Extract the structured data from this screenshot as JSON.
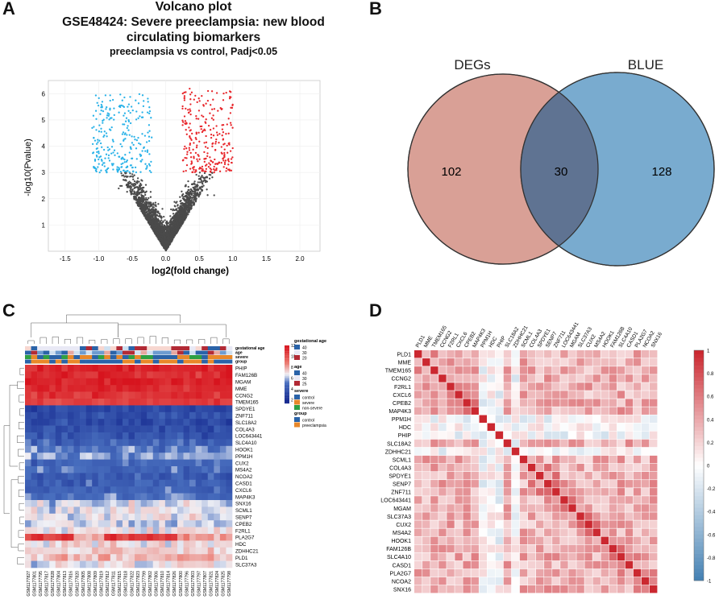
{
  "panels": {
    "a": "A",
    "b": "B",
    "c": "C",
    "d": "D"
  },
  "volcano": {
    "title": "Volcano plot",
    "subtitle": "GSE48424: Severe preeclampsia: new blood circulating biomarkers",
    "subtitle_line1": "GSE48424: Severe preeclampsia: new blood",
    "subtitle_line2": "circulating biomarkers",
    "comparison": "preeclampsia vs control, Padj<0.05",
    "chart_data": {
      "type": "scatter",
      "xlabel": "log2(fold change)",
      "ylabel": "-log10(Pvalue)",
      "xlim": [
        -1.75,
        2.3
      ],
      "ylim": [
        0,
        6.5
      ],
      "xticks": [
        "-1.5",
        "-1.0",
        "-0.5",
        "0.0",
        "0.5",
        "1.0",
        "1.5",
        "2.0"
      ],
      "xtick_values": [
        -1.5,
        -1.0,
        -0.5,
        0.0,
        0.5,
        1.0,
        1.5,
        2.0
      ],
      "yticks": [
        "1",
        "2",
        "3",
        "4",
        "5",
        "6"
      ],
      "ytick_values": [
        1,
        2,
        3,
        4,
        5,
        6
      ],
      "threshold_y": 3.0,
      "colors": {
        "down": "#29b2e8",
        "up": "#e8252a",
        "ns": "#4a4a4a"
      }
    }
  },
  "venn": {
    "chart_data": {
      "type": "venn",
      "sets": [
        {
          "name": "DEGs",
          "only": 102,
          "color": "#d9a096"
        },
        {
          "name": "BLUE",
          "only": 128,
          "color": "#79abcf"
        }
      ],
      "intersection": 30,
      "overlap_color": "#5f7392"
    }
  },
  "heatmap": {
    "chart_data": {
      "type": "heatmap",
      "genes": [
        "PHIP",
        "FAM126B",
        "MGAM",
        "MME",
        "CCNG2",
        "TMEM165",
        "SPDYE1",
        "ZNF711",
        "SLC18A2",
        "COL4A3",
        "LOC643441",
        "SLC4A10",
        "HOOK1",
        "PPM1H",
        "CUX2",
        "MS4A2",
        "NCOA2",
        "CASD1",
        "CXCL6",
        "MAP4K3",
        "SNX16",
        "SCML1",
        "SENP7",
        "CPEB2",
        "F2RL1",
        "PLA2G7",
        "HDC",
        "ZDHHC21",
        "PLD1",
        "SLC37A3"
      ],
      "samples": [
        "GSM1177827",
        "GSM1177801",
        "GSM1177795",
        "GSM1177817",
        "GSM1177828",
        "GSM1177804",
        "GSM1177813",
        "GSM1177816",
        "GSM1177820",
        "GSM1177805",
        "GSM1177808",
        "GSM1177809",
        "GSM1177819",
        "GSM1177812",
        "GSM1177811",
        "GSM1177815",
        "GSM1177818",
        "GSM1177822",
        "GSM1177823",
        "GSM1177799",
        "GSM1177802",
        "GSM1177806",
        "GSM1177810",
        "GSM1177814",
        "GSM1177826",
        "GSM1177800",
        "GSM1177796",
        "GSM1177803",
        "GSM1177797",
        "GSM1177807",
        "GSM1177821",
        "GSM1177824",
        "GSM1177825",
        "GSM1177798"
      ],
      "annotation_labels": [
        "gestational age",
        "age",
        "severe",
        "group"
      ],
      "color_scale": {
        "min": 0,
        "max": 12,
        "ticks": [
          "12",
          "10",
          "8",
          "6",
          "4",
          "2"
        ]
      },
      "legend": {
        "gestational_age": {
          "title": "gestational age",
          "ticks": [
            "40",
            "30",
            "20"
          ]
        },
        "age": {
          "title": "age",
          "ticks": [
            "40",
            "30",
            "25"
          ]
        },
        "severe": {
          "title": "severe",
          "items": [
            {
              "label": "control",
              "color": "#2a63a8"
            },
            {
              "label": "severe",
              "color": "#e8882a"
            },
            {
              "label": "non-severe",
              "color": "#2ea043"
            }
          ]
        },
        "group": {
          "title": "group",
          "items": [
            {
              "label": "control",
              "color": "#2a63a8"
            },
            {
              "label": "preeclampsia",
              "color": "#e8882a"
            }
          ]
        }
      }
    }
  },
  "corr": {
    "chart_data": {
      "type": "heatmap",
      "genes": [
        "PLD1",
        "MME",
        "TMEM165",
        "CCNG2",
        "F2RL1",
        "CXCL6",
        "CPEB2",
        "MAP4K3",
        "PPM1H",
        "HDC",
        "PHIP",
        "SLC18A2",
        "ZDHHC21",
        "SCML1",
        "COL4A3",
        "SPDYE1",
        "SENP7",
        "ZNF711",
        "LOC643441",
        "MGAM",
        "SLC37A3",
        "CUX2",
        "MS4A2",
        "HOOK1",
        "FAM126B",
        "SLC4A10",
        "CASD1",
        "PLA2G7",
        "NCOA2",
        "SNX16"
      ],
      "color_scale": {
        "min": -1,
        "max": 1,
        "ticks": [
          "1",
          "0.8",
          "0.6",
          "0.4",
          "0.2",
          "0",
          "-0.2",
          "-0.4",
          "-0.6",
          "-0.8",
          "-1"
        ]
      }
    }
  }
}
